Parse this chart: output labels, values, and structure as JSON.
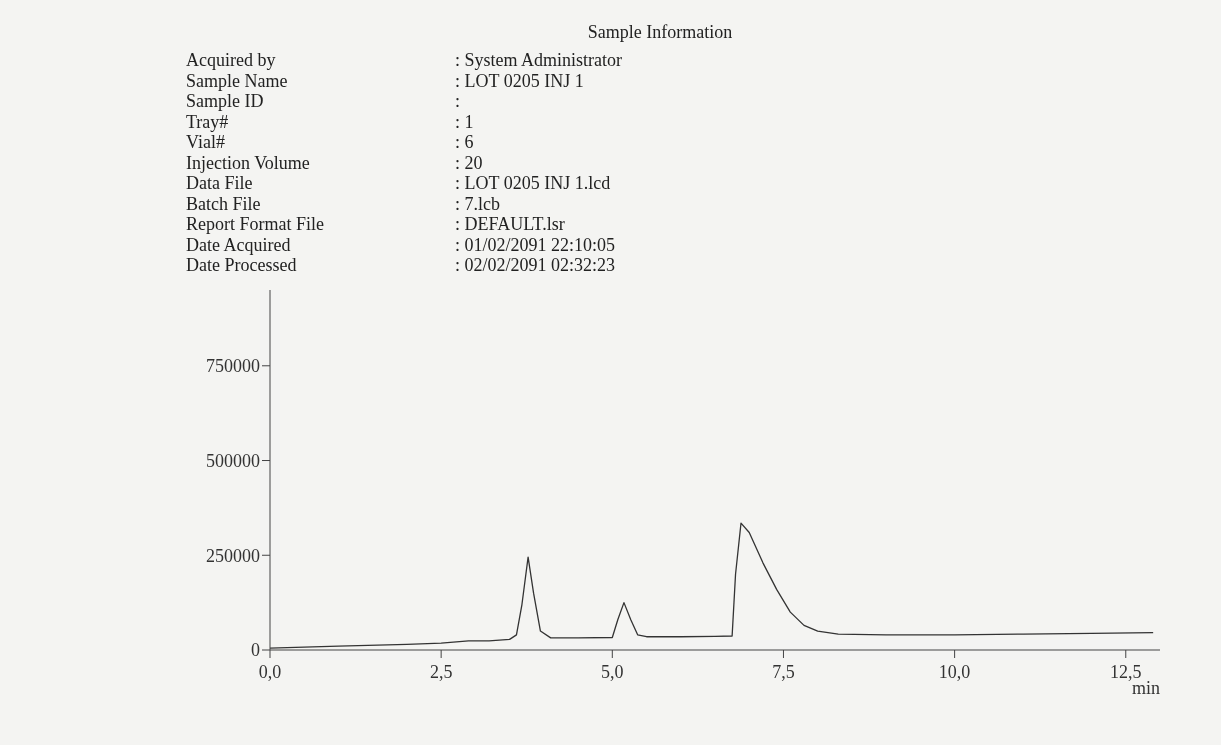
{
  "chart_data": {
    "type": "line",
    "title": "Sample Information",
    "annotations": [
      "Acquired by",
      ": System Administrator",
      "Sample Name",
      ": LOT 0205 INJ 1",
      "Sample ID",
      ":",
      "Tray#",
      ": 1",
      "Vial#",
      ": 6",
      "Injection Volume",
      ": 20",
      "Data File",
      ": LOT 0205 INJ 1.lcd",
      "Batch File",
      ": 7.lcb",
      "Report Format File",
      ": DEFAULT.lsr",
      "Date Acquired",
      ": 01/02/2091 22:10:05",
      "Date Processed",
      ": 02/02/2091 02:32:23"
    ],
    "xlabel": "min",
    "x": [
      0,
      1,
      2,
      2.5,
      2.9,
      3.2,
      3.5,
      3.6,
      3.68,
      3.77,
      3.85,
      3.95,
      4.1,
      4.5,
      5.0,
      5.08,
      5.17,
      5.27,
      5.37,
      5.5,
      6.0,
      6.5,
      6.75,
      6.8,
      6.88,
      7.0,
      7.2,
      7.4,
      7.6,
      7.8,
      8.0,
      8.3,
      9,
      10,
      11,
      12,
      12.9
    ],
    "series": [
      {
        "color": "#333333",
        "values": [
          5000,
          10000,
          15000,
          18000,
          24000,
          24000,
          28000,
          40000,
          120000,
          245000,
          150000,
          50000,
          32000,
          32000,
          33000,
          80000,
          125000,
          80000,
          40000,
          35000,
          35000,
          36000,
          37000,
          200000,
          335000,
          310000,
          230000,
          160000,
          100000,
          65000,
          50000,
          42000,
          40000,
          40000,
          42000,
          44000,
          46000
        ]
      }
    ],
    "xlim": [
      0,
      13
    ],
    "ylim": [
      0,
      950000
    ],
    "xticks": [
      {
        "value": 0,
        "label": "0,0"
      },
      {
        "value": 2.5,
        "label": "2,5"
      },
      {
        "value": 5,
        "label": "5,0"
      },
      {
        "value": 7.5,
        "label": "7,5"
      },
      {
        "value": 10,
        "label": "10,0"
      },
      {
        "value": 12.5,
        "label": "12,5"
      }
    ],
    "yticks": [
      0,
      250000,
      500000,
      750000
    ],
    "marker": "none",
    "line_style": "solid"
  }
}
